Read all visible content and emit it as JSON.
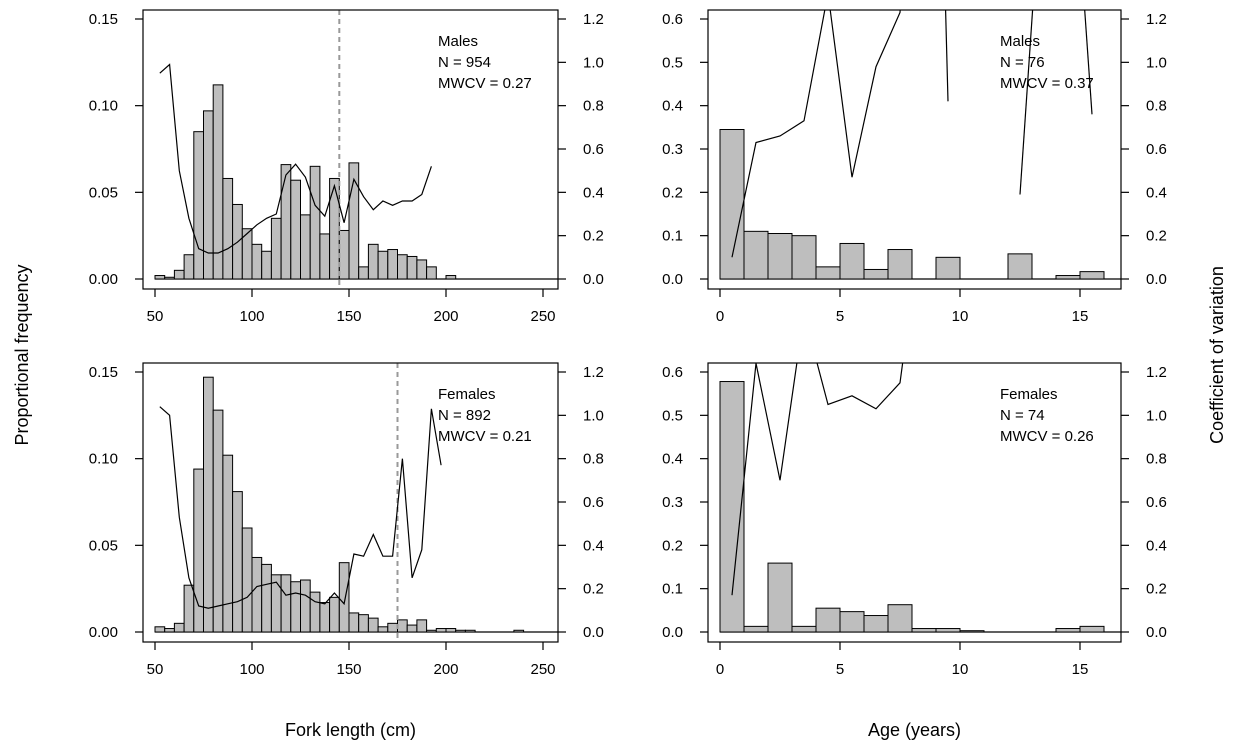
{
  "figure": {
    "ylabel_left": "Proportional frequency",
    "ylabel_right": "Coefficient of variation"
  },
  "chart_data": [
    {
      "type": "bar",
      "panel": "top-left",
      "xlabel": "",
      "xlim": [
        40,
        255
      ],
      "ylim": [
        0,
        0.15
      ],
      "y2lim": [
        0,
        1.2
      ],
      "x_ticks": [
        50,
        100,
        150,
        200,
        250
      ],
      "y_ticks": [
        "0.00",
        "0.05",
        "0.10",
        "0.15"
      ],
      "y2_ticks": [
        "0.0",
        "0.2",
        "0.4",
        "0.6",
        "0.8",
        "1.0",
        "1.2"
      ],
      "bin_width": 5,
      "bar_left_edges": [
        50,
        55,
        60,
        65,
        70,
        75,
        80,
        85,
        90,
        95,
        100,
        105,
        110,
        115,
        120,
        125,
        130,
        135,
        140,
        145,
        150,
        155,
        160,
        165,
        170,
        175,
        180,
        185,
        190,
        195,
        200,
        205,
        210,
        215,
        220,
        225,
        230,
        235,
        240,
        245
      ],
      "values": [
        0.002,
        0.001,
        0.005,
        0.014,
        0.085,
        0.097,
        0.112,
        0.058,
        0.043,
        0.029,
        0.02,
        0.016,
        0.035,
        0.066,
        0.057,
        0.037,
        0.065,
        0.026,
        0.058,
        0.028,
        0.067,
        0.007,
        0.02,
        0.016,
        0.017,
        0.014,
        0.013,
        0.011,
        0.007,
        0,
        0.002,
        0,
        0,
        0,
        0,
        0,
        0,
        0,
        0,
        0
      ],
      "cv_line": {
        "x": [
          52.5,
          57.5,
          62.5,
          67.5,
          72.5,
          77.5,
          82.5,
          87.5,
          92.5,
          97.5,
          102.5,
          107.5,
          112.5,
          117.5,
          122.5,
          127.5,
          132.5,
          137.5,
          142.5,
          147.5,
          152.5,
          157.5,
          162.5,
          167.5,
          172.5,
          177.5,
          182.5,
          187.5,
          192.5
        ],
        "y": [
          0.95,
          0.99,
          0.5,
          0.28,
          0.14,
          0.12,
          0.12,
          0.14,
          0.17,
          0.21,
          0.25,
          0.28,
          0.3,
          0.48,
          0.53,
          0.47,
          0.34,
          0.29,
          0.43,
          0.26,
          0.46,
          0.38,
          0.32,
          0.36,
          0.34,
          0.36,
          0.36,
          0.39,
          0.52
        ]
      },
      "ref_line_x": 145,
      "annotation": [
        "Males",
        "N = 954",
        "MWCV = 0.27"
      ]
    },
    {
      "type": "bar",
      "panel": "top-right",
      "xlabel": "",
      "xlim": [
        -0.8,
        16.4
      ],
      "ylim": [
        0,
        0.6
      ],
      "y2lim": [
        0,
        1.2
      ],
      "x_ticks": [
        0,
        5,
        10,
        15
      ],
      "y_ticks": [
        "0.0",
        "0.1",
        "0.2",
        "0.3",
        "0.4",
        "0.5",
        "0.6"
      ],
      "y2_ticks": [
        "0.0",
        "0.2",
        "0.4",
        "0.6",
        "0.8",
        "1.0",
        "1.2"
      ],
      "bin_width": 1,
      "bar_left_edges": [
        0,
        1,
        2,
        3,
        4,
        5,
        6,
        7,
        8,
        9,
        10,
        11,
        12,
        13,
        14,
        15
      ],
      "values": [
        0.345,
        0.11,
        0.105,
        0.1,
        0.028,
        0.082,
        0.022,
        0.068,
        0,
        0.05,
        0,
        0,
        0.058,
        0,
        0.008,
        0.017
      ],
      "cv_segments": [
        {
          "x": [
            0.5,
            1.5,
            2.5,
            3.5,
            4.5,
            5.5,
            6.5,
            7.5,
            8.3
          ],
          "y": [
            0.1,
            0.63,
            0.66,
            0.73,
            1.32,
            0.47,
            0.98,
            1.23,
            2.5
          ]
        },
        {
          "x": [
            9.1,
            9.5
          ],
          "y": [
            2.5,
            0.82
          ]
        },
        {
          "x": [
            12.5,
            13.8
          ],
          "y": [
            0.39,
            2.5
          ]
        },
        {
          "x": [
            14.4,
            15.5
          ],
          "y": [
            2.5,
            0.76
          ]
        }
      ],
      "annotation": [
        "Males",
        "N = 76",
        "MWCV = 0.37"
      ]
    },
    {
      "type": "bar",
      "panel": "bottom-left",
      "xlabel": "Fork length (cm)",
      "xlim": [
        40,
        255
      ],
      "ylim": [
        0,
        0.15
      ],
      "y2lim": [
        0,
        1.2
      ],
      "x_ticks": [
        50,
        100,
        150,
        200,
        250
      ],
      "y_ticks": [
        "0.00",
        "0.05",
        "0.10",
        "0.15"
      ],
      "y2_ticks": [
        "0.0",
        "0.2",
        "0.4",
        "0.6",
        "0.8",
        "1.0",
        "1.2"
      ],
      "bin_width": 5,
      "bar_left_edges": [
        50,
        55,
        60,
        65,
        70,
        75,
        80,
        85,
        90,
        95,
        100,
        105,
        110,
        115,
        120,
        125,
        130,
        135,
        140,
        145,
        150,
        155,
        160,
        165,
        170,
        175,
        180,
        185,
        190,
        195,
        200,
        205,
        210,
        215,
        220,
        225,
        230,
        235,
        240,
        245
      ],
      "values": [
        0.003,
        0.002,
        0.005,
        0.027,
        0.094,
        0.147,
        0.128,
        0.102,
        0.081,
        0.06,
        0.043,
        0.039,
        0.033,
        0.033,
        0.029,
        0.03,
        0.023,
        0.017,
        0.02,
        0.04,
        0.011,
        0.01,
        0.008,
        0.003,
        0.005,
        0.007,
        0.004,
        0.007,
        0.001,
        0.002,
        0.002,
        0.001,
        0.001,
        0,
        0,
        0,
        0,
        0.001,
        0,
        0
      ],
      "cv_line": {
        "x": [
          52.5,
          57.5,
          62.5,
          67.5,
          72.5,
          77.5,
          82.5,
          87.5,
          92.5,
          97.5,
          102.5,
          107.5,
          112.5,
          117.5,
          122.5,
          127.5,
          132.5,
          137.5,
          142.5,
          147.5,
          152.5,
          157.5,
          162.5,
          167.5,
          172.5,
          177.5,
          182.5,
          187.5,
          192.5,
          197.5
        ],
        "y": [
          1.04,
          1.0,
          0.53,
          0.25,
          0.12,
          0.11,
          0.12,
          0.13,
          0.14,
          0.16,
          0.21,
          0.22,
          0.23,
          0.17,
          0.18,
          0.17,
          0.14,
          0.13,
          0.18,
          0.13,
          0.36,
          0.35,
          0.45,
          0.35,
          0.35,
          0.8,
          0.25,
          0.38,
          1.03,
          0.77
        ]
      },
      "ref_line_x": 175,
      "annotation": [
        "Females",
        "N = 892",
        "MWCV = 0.21"
      ]
    },
    {
      "type": "bar",
      "panel": "bottom-right",
      "xlabel": "Age (years)",
      "xlim": [
        -0.8,
        16.4
      ],
      "ylim": [
        0,
        0.6
      ],
      "y2lim": [
        0,
        1.2
      ],
      "x_ticks": [
        0,
        5,
        10,
        15
      ],
      "y_ticks": [
        "0.0",
        "0.1",
        "0.2",
        "0.3",
        "0.4",
        "0.5",
        "0.6"
      ],
      "y2_ticks": [
        "0.0",
        "0.2",
        "0.4",
        "0.6",
        "0.8",
        "1.0",
        "1.2"
      ],
      "bin_width": 1,
      "bar_left_edges": [
        0,
        1,
        2,
        3,
        4,
        5,
        6,
        7,
        8,
        9,
        10,
        11,
        12,
        13,
        14,
        15
      ],
      "values": [
        0.578,
        0.013,
        0.159,
        0.013,
        0.055,
        0.047,
        0.038,
        0.063,
        0.008,
        0.008,
        0.003,
        0,
        0,
        0,
        0.008,
        0.013
      ],
      "cv_segments": [
        {
          "x": [
            0.5,
            1.5,
            2.5,
            3.5,
            4.5,
            5.5,
            6.5,
            7.5,
            8.5,
            9.5,
            10.5
          ],
          "y": [
            0.17,
            1.24,
            0.7,
            1.47,
            1.05,
            1.09,
            1.03,
            1.15,
            1.98,
            2.25,
            2.6
          ]
        }
      ],
      "annotation": [
        "Females",
        "N = 74",
        "MWCV = 0.26"
      ]
    }
  ]
}
